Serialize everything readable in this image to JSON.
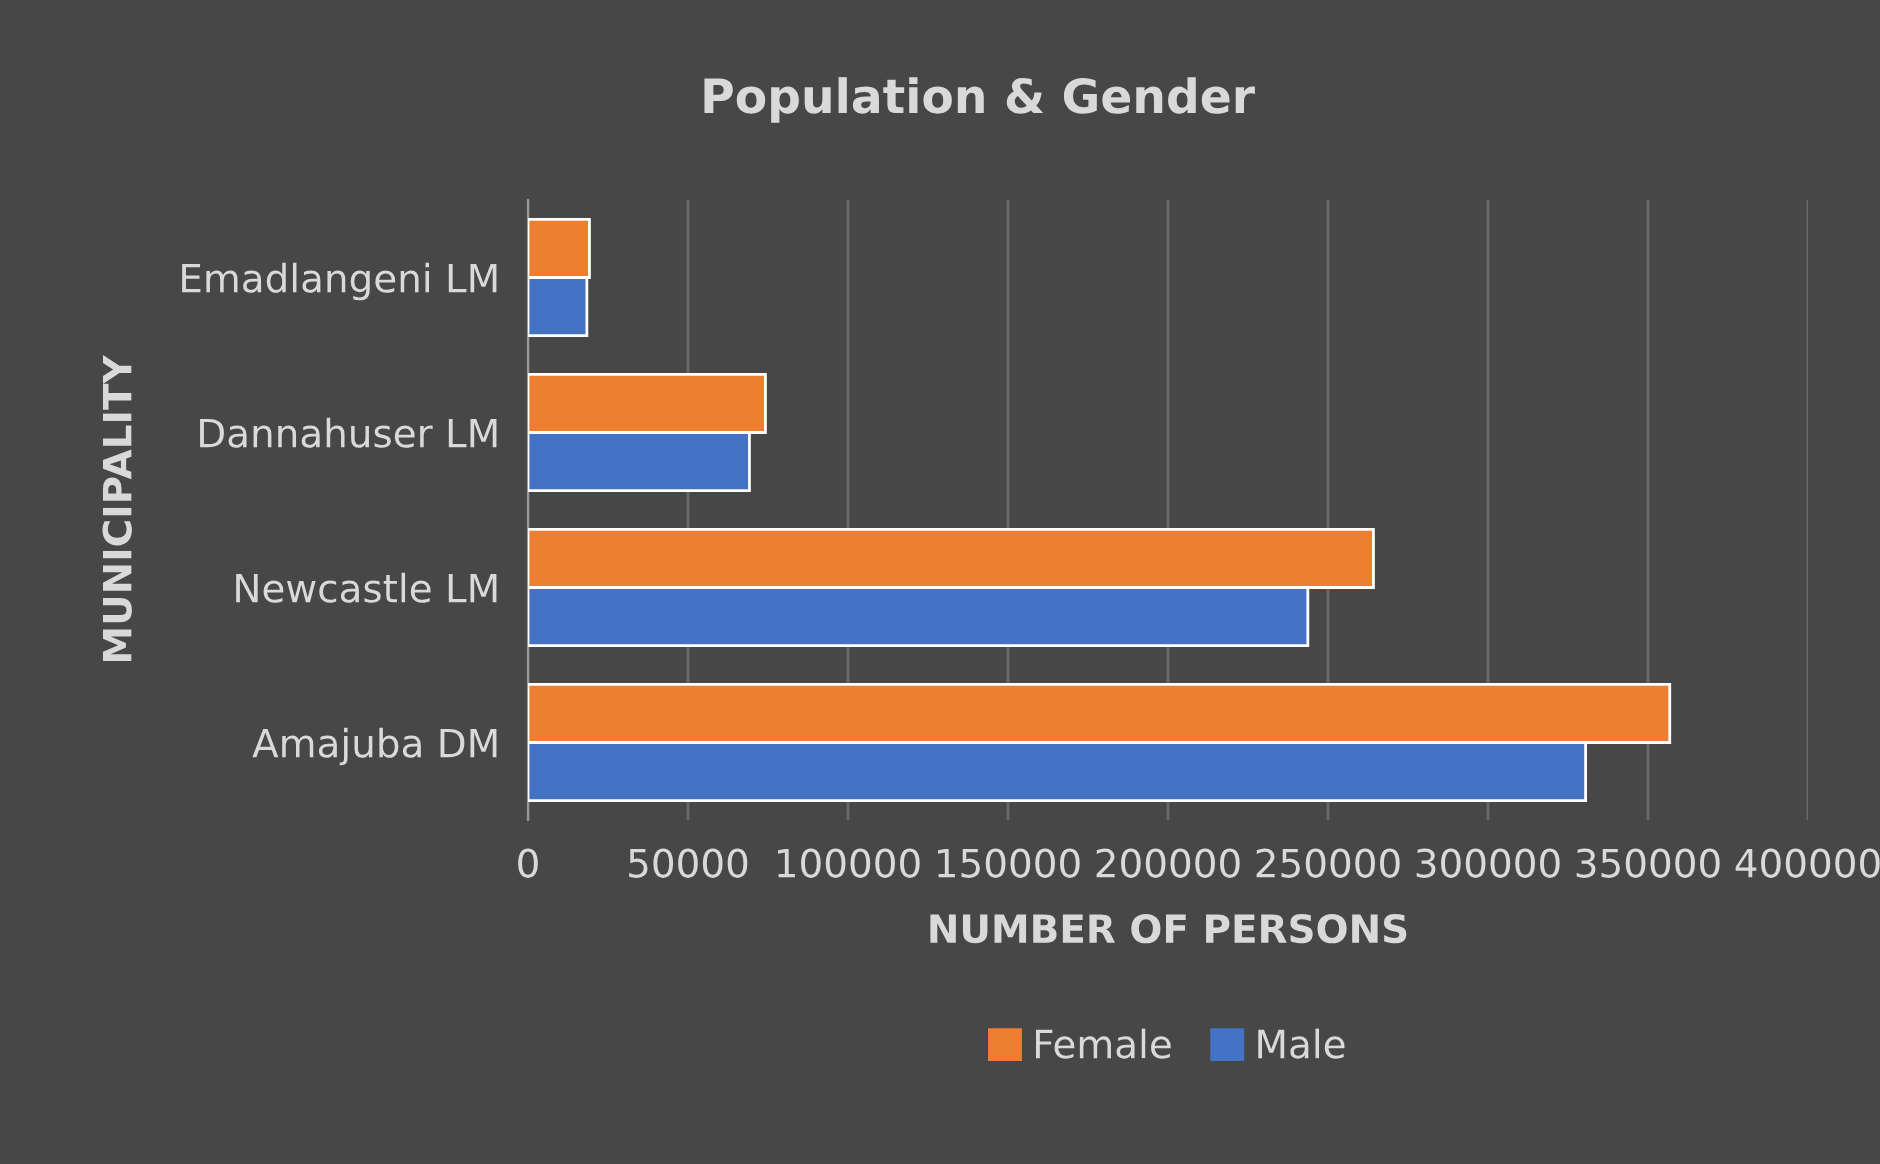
{
  "chart_data": {
    "type": "bar",
    "orientation": "horizontal",
    "title": "Population & Gender",
    "xlabel": "NUMBER OF PERSONS",
    "ylabel": "MUNICIPALITY",
    "categories": [
      "Emadlangeni LM",
      "Dannahuser LM",
      "Newcastle LM",
      "Amajuba DM"
    ],
    "series": [
      {
        "name": "Female",
        "color": "#ed7d31",
        "values": [
          19200,
          74200,
          264200,
          356800
        ]
      },
      {
        "name": "Male",
        "color": "#4472c4",
        "values": [
          18400,
          69200,
          243700,
          330500
        ]
      }
    ],
    "xlim": [
      0,
      400000
    ],
    "xticks": [
      0,
      50000,
      100000,
      150000,
      200000,
      250000,
      300000,
      350000,
      400000
    ],
    "grid": "x",
    "legend": "bottom"
  }
}
